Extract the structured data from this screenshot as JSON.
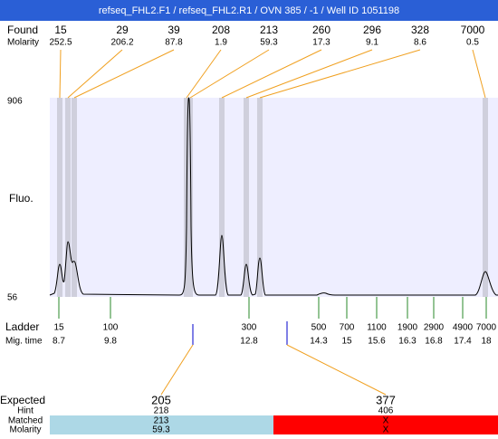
{
  "title": "refseq_FHL2.F1 / refseq_FHL2.R1 / OVN 385 / -1 / Well ID 1051198",
  "found": {
    "label": "Found",
    "molarity_label": "Molarity",
    "peaks": [
      {
        "size": 15,
        "molarity": 252.5
      },
      {
        "size": 29,
        "molarity": 206.2
      },
      {
        "size": 39,
        "molarity": 87.8
      },
      {
        "size": 208,
        "molarity": 1.9
      },
      {
        "size": 213,
        "molarity": 59.3
      },
      {
        "size": 260,
        "molarity": 17.3
      },
      {
        "size": 296,
        "molarity": 9.1
      },
      {
        "size": 328,
        "molarity": 8.6
      },
      {
        "size": 7000,
        "molarity": 0.5
      }
    ]
  },
  "axis": {
    "max": 906,
    "min": 56,
    "label": "Fluo."
  },
  "ladder": {
    "label": "Ladder",
    "time_label": "Mig. time",
    "sizes": [
      15,
      100,
      300,
      500,
      700,
      1100,
      1900,
      2900,
      4900,
      7000
    ],
    "times": [
      8.7,
      9.8,
      12.8,
      14.3,
      15,
      15.6,
      16.3,
      16.8,
      17.4,
      18
    ]
  },
  "expected": {
    "label": "Expected",
    "hint_label": "Hint",
    "matched_label": "Matched",
    "molarity_label": "Molarity",
    "columns": [
      {
        "size": 205,
        "hint": 218,
        "matched": 213,
        "molarity": 59.3
      },
      {
        "size": 377,
        "hint": 406,
        "matched": "X",
        "molarity": "X"
      }
    ]
  }
}
